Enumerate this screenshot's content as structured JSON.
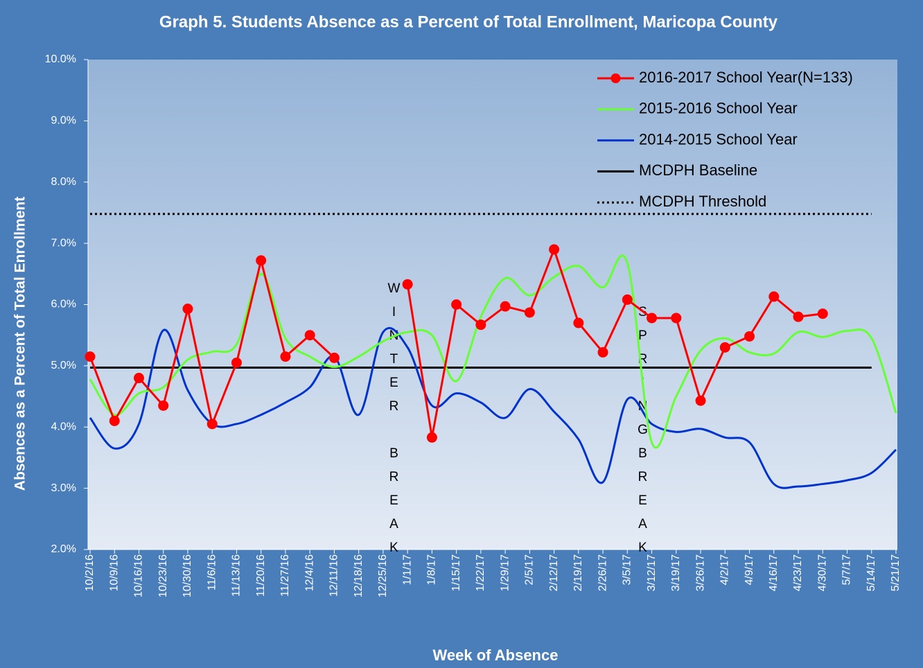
{
  "chart_data": {
    "type": "line",
    "title": "Graph 5. Students Absence as a Percent of Total Enrollment, Maricopa County",
    "x_label": "Week of Absence",
    "y_label": "Absences as a Percent of Total Enrollment",
    "categories": [
      "10/2/16",
      "10/9/16",
      "10/16/16",
      "10/23/16",
      "10/30/16",
      "11/6/16",
      "11/13/16",
      "11/20/16",
      "11/27/16",
      "12/4/16",
      "12/11/16",
      "12/18/16",
      "12/25/16",
      "1/1/17",
      "1/8/17",
      "1/15/17",
      "1/22/17",
      "1/29/17",
      "2/5/17",
      "2/12/17",
      "2/19/17",
      "2/26/17",
      "3/5/17",
      "3/12/17",
      "3/19/17",
      "3/26/17",
      "4/2/17",
      "4/9/17",
      "4/16/17",
      "4/23/17",
      "4/30/17",
      "5/7/17",
      "5/14/17",
      "5/21/17"
    ],
    "ylim": [
      2,
      10
    ],
    "yticks": [
      {
        "value": 2,
        "label": "2.0%"
      },
      {
        "value": 3,
        "label": "3.0%"
      },
      {
        "value": 4,
        "label": "4.0%"
      },
      {
        "value": 5,
        "label": "5.0%"
      },
      {
        "value": 6,
        "label": "6.0%"
      },
      {
        "value": 7,
        "label": "7.0%"
      },
      {
        "value": 8,
        "label": "8.0%"
      },
      {
        "value": 9,
        "label": "9.0%"
      },
      {
        "value": 10,
        "label": "10.0%"
      }
    ],
    "series": [
      {
        "name": "2016-2017 School Year(N=133)",
        "color": "#ff0000",
        "marker": true,
        "smooth": false,
        "values": [
          5.15,
          4.1,
          4.8,
          4.35,
          5.93,
          4.05,
          5.05,
          6.72,
          5.15,
          5.5,
          5.13,
          null,
          null,
          6.33,
          3.83,
          6.0,
          5.67,
          5.97,
          5.87,
          6.9,
          5.7,
          5.22,
          6.08,
          5.78,
          5.78,
          4.43,
          5.3,
          5.48,
          6.13,
          5.8,
          5.85,
          null,
          null,
          null
        ]
      },
      {
        "name": "2015-2016 School Year",
        "color": "#66ff33",
        "marker": false,
        "smooth": true,
        "values": [
          4.78,
          4.2,
          4.55,
          4.65,
          5.1,
          5.23,
          5.35,
          6.5,
          5.45,
          5.15,
          4.98,
          5.15,
          5.4,
          5.55,
          5.5,
          4.75,
          5.8,
          6.43,
          6.15,
          6.45,
          6.63,
          6.28,
          6.68,
          3.75,
          4.5,
          5.25,
          5.45,
          5.22,
          5.2,
          5.55,
          5.47,
          5.57,
          5.45,
          4.23
        ]
      },
      {
        "name": "2014-2015 School Year",
        "color": "#0033cc",
        "marker": false,
        "smooth": true,
        "values": [
          4.15,
          3.65,
          4.05,
          5.58,
          4.6,
          4.05,
          4.05,
          4.2,
          4.4,
          4.65,
          5.15,
          4.2,
          5.55,
          5.3,
          4.35,
          4.55,
          4.4,
          4.15,
          4.62,
          4.25,
          3.8,
          3.1,
          4.45,
          4.05,
          3.92,
          3.97,
          3.83,
          3.75,
          3.07,
          3.03,
          3.07,
          3.13,
          3.25,
          3.63
        ]
      },
      {
        "name": "MCDPH Baseline",
        "color": "#000000",
        "marker": false,
        "smooth": false,
        "values": [
          4.97,
          4.97,
          4.97,
          4.97,
          4.97,
          4.97,
          4.97,
          4.97,
          4.97,
          4.97,
          4.97,
          4.97,
          4.97,
          4.97,
          4.97,
          4.97,
          4.97,
          4.97,
          4.97,
          4.97,
          4.97,
          4.97,
          4.97,
          4.97,
          4.97,
          4.97,
          4.97,
          4.97,
          4.97,
          4.97,
          4.97,
          4.97,
          4.97,
          null
        ]
      },
      {
        "name": "MCDPH Threshold",
        "color": "#000000",
        "marker": false,
        "smooth": false,
        "dash": "dotted",
        "values": [
          7.48,
          7.48,
          7.48,
          7.48,
          7.48,
          7.48,
          7.48,
          7.48,
          7.48,
          7.48,
          7.48,
          7.48,
          7.48,
          7.48,
          7.48,
          7.48,
          7.48,
          7.48,
          7.48,
          7.48,
          7.48,
          7.48,
          7.48,
          7.48,
          7.48,
          7.48,
          7.48,
          7.48,
          7.48,
          7.48,
          7.48,
          7.48,
          7.48,
          null
        ]
      }
    ],
    "annotations": [
      "WINTER BREAK",
      "SPRINGBREAK"
    ]
  }
}
